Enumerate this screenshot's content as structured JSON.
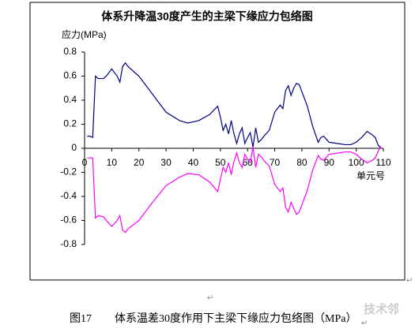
{
  "chart_data": {
    "type": "line",
    "title": "体系升降温30度产生的主梁下缘应力包络图",
    "y_label": "应力(MPa)",
    "x_label": "单元号",
    "x": [
      1,
      2,
      3,
      4,
      5,
      7,
      8,
      10,
      12,
      13,
      14,
      15,
      16,
      20,
      25,
      30,
      35,
      38,
      42,
      46,
      49,
      50,
      51,
      52,
      53,
      54,
      55,
      56,
      57,
      58,
      59,
      60,
      61,
      62,
      63,
      64,
      65,
      66,
      68,
      70,
      72,
      73,
      74,
      75,
      76,
      77,
      78,
      79,
      80,
      82,
      84,
      86,
      87,
      88,
      90,
      93,
      96,
      98,
      100,
      102,
      104,
      106,
      107,
      108,
      109
    ],
    "series": [
      {
        "color": "#000080",
        "values": [
          0.1,
          0.1,
          0.09,
          0.6,
          0.58,
          0.58,
          0.6,
          0.66,
          0.6,
          0.55,
          0.68,
          0.71,
          0.68,
          0.6,
          0.45,
          0.3,
          0.23,
          0.21,
          0.23,
          0.28,
          0.35,
          0.26,
          0.15,
          0.2,
          0.12,
          0.23,
          0.12,
          0.04,
          0.12,
          0.17,
          0.04,
          0.09,
          0.13,
          0.01,
          0.17,
          0.05,
          0.07,
          0.1,
          0.15,
          0.3,
          0.36,
          0.33,
          0.48,
          0.52,
          0.44,
          0.5,
          0.54,
          0.53,
          0.47,
          0.35,
          0.18,
          0.05,
          0.09,
          0.1,
          0.05,
          0.04,
          0.03,
          0.03,
          0.05,
          0.09,
          0.14,
          0.11,
          0.09,
          0.03,
          0.0
        ]
      },
      {
        "color": "#ff00ff",
        "values": [
          -0.08,
          -0.08,
          -0.08,
          -0.58,
          -0.56,
          -0.57,
          -0.6,
          -0.65,
          -0.6,
          -0.56,
          -0.68,
          -0.7,
          -0.67,
          -0.6,
          -0.45,
          -0.31,
          -0.24,
          -0.21,
          -0.22,
          -0.28,
          -0.36,
          -0.26,
          -0.16,
          -0.2,
          -0.12,
          -0.22,
          -0.11,
          -0.04,
          -0.12,
          -0.16,
          -0.05,
          -0.09,
          -0.12,
          0.01,
          -0.16,
          -0.05,
          -0.07,
          -0.1,
          -0.15,
          -0.3,
          -0.36,
          -0.33,
          -0.49,
          -0.53,
          -0.45,
          -0.5,
          -0.55,
          -0.53,
          -0.47,
          -0.35,
          -0.18,
          -0.06,
          -0.09,
          -0.1,
          -0.05,
          -0.04,
          -0.03,
          -0.03,
          -0.05,
          -0.09,
          -0.12,
          -0.1,
          -0.08,
          -0.03,
          0.02
        ]
      }
    ],
    "xlim": [
      0,
      110
    ],
    "xticks": [
      0,
      10,
      20,
      30,
      40,
      50,
      60,
      70,
      80,
      90,
      100,
      110
    ],
    "ylim": [
      -0.8,
      0.8
    ],
    "yticks": [
      0.8,
      0.6,
      0.4,
      0.2,
      0,
      -0.2,
      -0.4,
      -0.6,
      -0.8
    ],
    "grid": false
  },
  "caption": {
    "number": "图17",
    "text": "体系温差30度作用下主梁下缘应力包络图（MPa）"
  },
  "paragraph_marks": [
    "↵",
    "↵",
    "↵"
  ],
  "watermark": "技术邻"
}
